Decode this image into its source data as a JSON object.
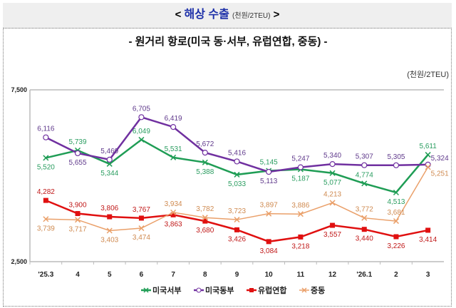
{
  "header": {
    "left": "<",
    "title": "해상 수출",
    "unit": "(천원/2TEU)",
    "right": ">"
  },
  "subtitle": "- 원거리 항로(미국 동·서부, 유럽연합, 중동) -",
  "unit_label": "(천원/2TEU)",
  "chart_data": {
    "type": "line",
    "categories": [
      "'25.3",
      "4",
      "5",
      "6",
      "7",
      "8",
      "9",
      "10",
      "11",
      "12",
      "'26.1",
      "2",
      "3"
    ],
    "ylim": [
      2500,
      7500
    ],
    "yticks": [
      "7,500",
      "2,500"
    ],
    "yticks_values": [
      7500,
      2500
    ],
    "legend_position": "bottom",
    "grid": false,
    "series": [
      {
        "name": "미국서부",
        "color": "#1f9d55",
        "label_color": "#2a9d60",
        "marker": "x",
        "values": [
          5520,
          5739,
          5344,
          6049,
          5531,
          5388,
          5033,
          5145,
          5187,
          5077,
          4774,
          4513,
          5611
        ]
      },
      {
        "name": "미국동부",
        "color": "#7030a0",
        "label_color": "#603a8c",
        "marker": "circle",
        "values": [
          6116,
          5655,
          5469,
          6705,
          6419,
          5672,
          5416,
          5113,
          5247,
          5340,
          5307,
          5305,
          5324
        ]
      },
      {
        "name": "유럽연합",
        "color": "#e01010",
        "label_color": "#c01818",
        "marker": "square",
        "values": [
          4282,
          3900,
          3806,
          3767,
          3863,
          3680,
          3426,
          3084,
          3218,
          3557,
          3440,
          3226,
          3414
        ]
      },
      {
        "name": "중동",
        "color": "#eaa06a",
        "label_color": "#cf8a50",
        "marker": "x",
        "values": [
          3739,
          3717,
          3403,
          3474,
          3934,
          3782,
          3723,
          3897,
          3886,
          4213,
          3772,
          3681,
          5251
        ]
      }
    ]
  }
}
